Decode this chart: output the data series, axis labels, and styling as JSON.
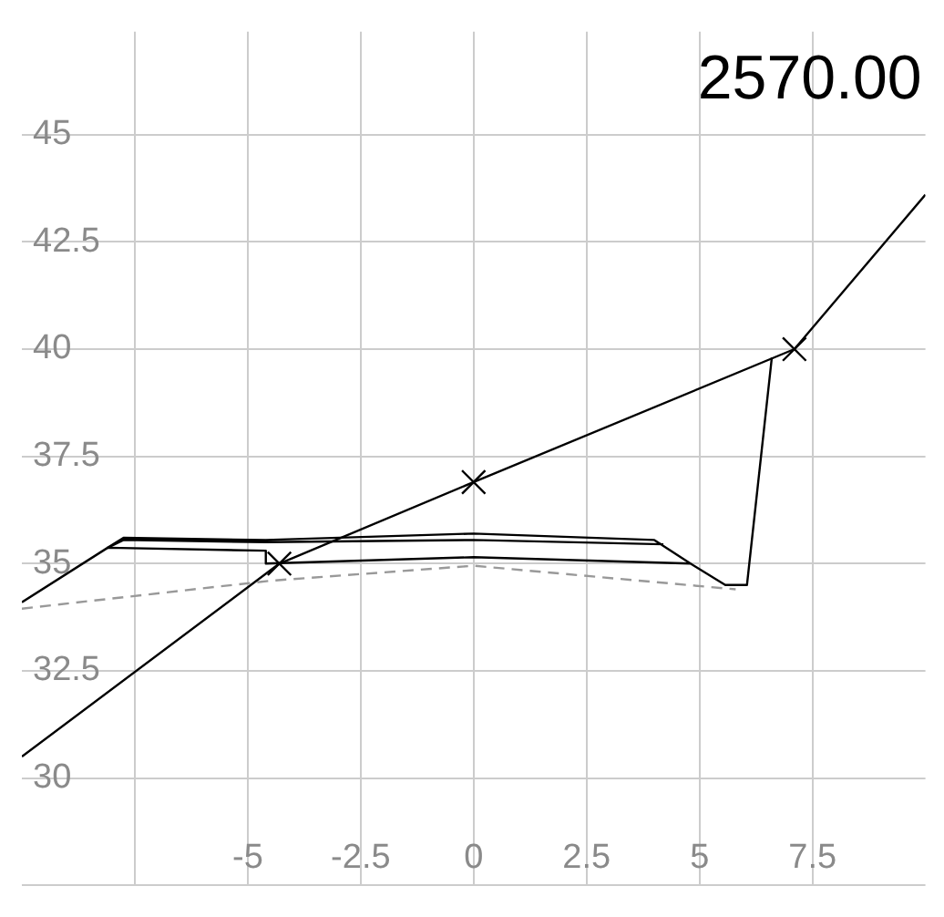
{
  "chart_data": {
    "type": "line",
    "title": "2570.00",
    "xlim": [
      -10,
      10
    ],
    "xticks": [
      {
        "value": -7.5,
        "label": null
      },
      -5,
      -2.5,
      0,
      2.5,
      5,
      7.5
    ],
    "ylim": [
      27.5,
      47.4
    ],
    "yticks": [
      {
        "value": 27.5,
        "label": null
      },
      30,
      32.5,
      35,
      37.5,
      40,
      42.5,
      45
    ],
    "grid": true,
    "legend": false,
    "marker": "none",
    "line_style": "solid",
    "series": [
      {
        "color": "#000000",
        "x": [
          -10,
          -4.3,
          0,
          7.1,
          10
        ],
        "values": [
          30.5,
          35.0,
          36.9,
          40.0,
          43.6
        ]
      },
      {
        "type": "scatter",
        "marker": "cross",
        "color": "#000000",
        "x": [
          -4.3,
          0,
          7.1
        ],
        "values": [
          35.0,
          36.9,
          40.0
        ]
      },
      {
        "color": "#999999",
        "line_style": "dashed",
        "x": [
          -10,
          -4.5,
          0,
          5.8
        ],
        "values": [
          33.95,
          34.6,
          34.95,
          34.4
        ]
      },
      {
        "color": "#000000",
        "x": [
          4.2,
          0,
          -4.6,
          -7.75,
          -8.1,
          -7.75,
          -4.6,
          0,
          4.0,
          4.8
        ],
        "values": [
          35.45,
          35.55,
          35.5,
          35.55,
          35.37,
          35.6,
          35.55,
          35.7,
          35.55,
          35.0
        ]
      },
      {
        "color": "#000000",
        "x": [
          -10,
          -8.1,
          -4.6,
          -4.6,
          0,
          4.8,
          5.57,
          6.05,
          6.6
        ],
        "values": [
          34.1,
          35.37,
          35.3,
          35.0,
          35.15,
          35.0,
          34.5,
          34.5,
          39.8
        ]
      }
    ]
  }
}
